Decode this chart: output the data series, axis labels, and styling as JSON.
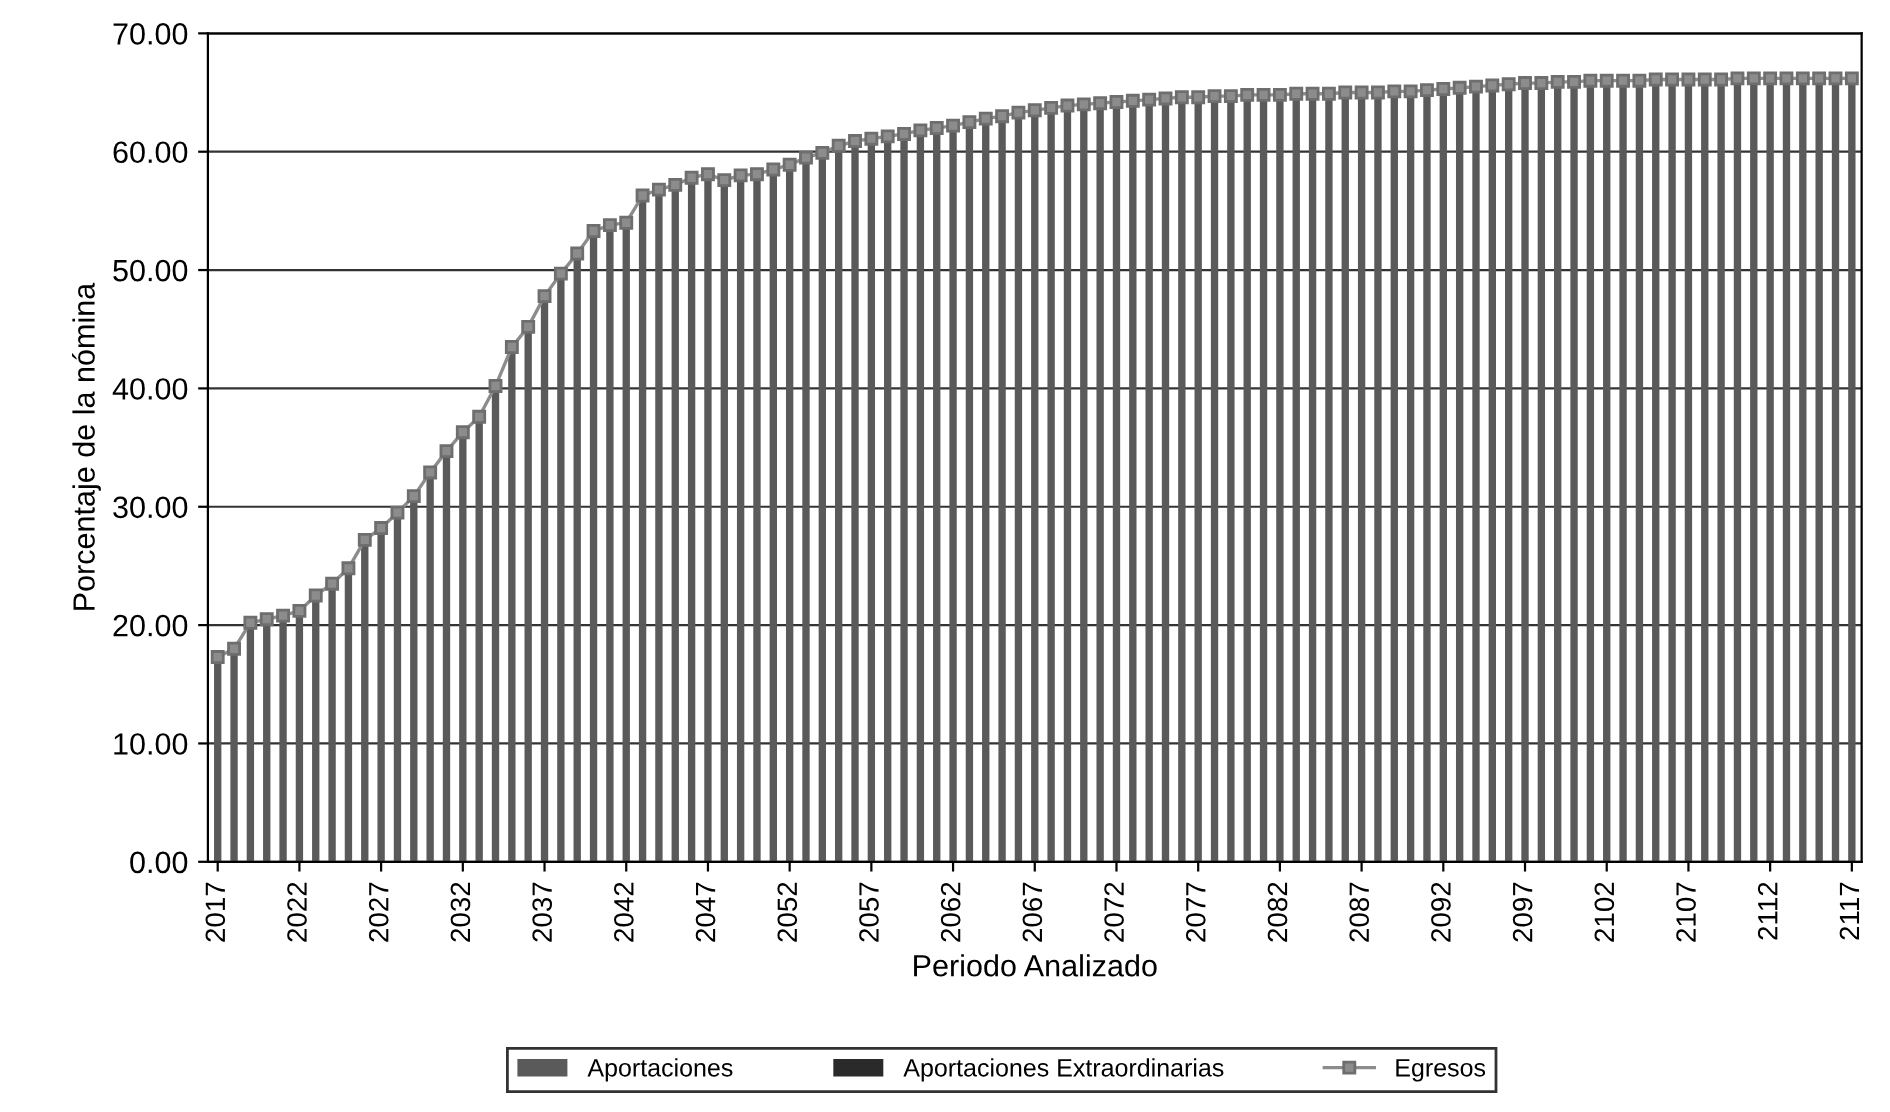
{
  "chart_data": {
    "type": "bar",
    "xlabel": "Periodo Analizado",
    "ylabel": "Porcentaje de la nómina",
    "categories": [
      "2017",
      null,
      null,
      null,
      null,
      "2022",
      null,
      null,
      null,
      null,
      "2027",
      null,
      null,
      null,
      null,
      "2032",
      null,
      null,
      null,
      null,
      "2037",
      null,
      null,
      null,
      null,
      "2042",
      null,
      null,
      null,
      null,
      "2047",
      null,
      null,
      null,
      null,
      "2052",
      null,
      null,
      null,
      null,
      "2057",
      null,
      null,
      null,
      null,
      "2062",
      null,
      null,
      null,
      null,
      "2067",
      null,
      null,
      null,
      null,
      "2072",
      null,
      null,
      null,
      null,
      "2077",
      null,
      null,
      null,
      null,
      "2082",
      null,
      null,
      null,
      null,
      "2087",
      null,
      null,
      null,
      null,
      "2092",
      null,
      null,
      null,
      null,
      "2097",
      null,
      null,
      null,
      null,
      "2102",
      null,
      null,
      null,
      null,
      "2107",
      null,
      null,
      null,
      null,
      "2112",
      null,
      null,
      null,
      null,
      "2117"
    ],
    "series": [
      {
        "name": "Aportaciones",
        "color": "#5a5a5a",
        "values": [
          17.3,
          18.0,
          20.2,
          20.5,
          20.8,
          21.2,
          22.5,
          23.5,
          24.8,
          27.2,
          28.2,
          29.5,
          30.9,
          32.9,
          34.7,
          36.3,
          37.6,
          40.2,
          43.5,
          45.2,
          47.8,
          49.7,
          51.4,
          53.3,
          53.8,
          54.0,
          56.3,
          56.8,
          57.2,
          57.8,
          58.1,
          57.6,
          58.0,
          58.1,
          58.5,
          58.9,
          59.5,
          59.9,
          60.5,
          60.9,
          61.1,
          61.3,
          61.5,
          61.8,
          62.0,
          62.2,
          62.5,
          62.8,
          63.0,
          63.3,
          63.5,
          63.7,
          63.9,
          64.0,
          64.1,
          64.2,
          64.3,
          64.4,
          64.5,
          64.6,
          64.6,
          64.7,
          64.7,
          64.8,
          64.8,
          64.8,
          64.9,
          64.9,
          64.9,
          65.0,
          65.0,
          65.0,
          65.1,
          65.1,
          65.2,
          65.3,
          65.4,
          65.5,
          65.6,
          65.7,
          65.8,
          65.8,
          65.9,
          65.9,
          66.0,
          66.0,
          66.0,
          66.0,
          66.1,
          66.1,
          66.1,
          66.1,
          66.1,
          66.2,
          66.2,
          66.2,
          66.2,
          66.2,
          66.2,
          66.2,
          66.2
        ]
      },
      {
        "name": "Aportaciones Extraordinarias",
        "color": "#2a2a2a",
        "values": [
          null,
          null,
          null,
          null,
          null,
          null,
          null,
          null,
          null,
          null,
          null,
          null,
          null,
          null,
          null,
          null,
          null,
          null,
          null,
          null,
          null,
          null,
          null,
          null,
          null,
          null,
          null,
          null,
          null,
          null,
          null,
          null,
          null,
          null,
          null,
          null,
          null,
          null,
          null,
          null,
          null,
          null,
          null,
          null,
          null,
          null,
          null,
          null,
          null,
          null,
          null,
          null,
          null,
          null,
          null,
          null,
          null,
          null,
          null,
          null,
          null,
          null,
          null,
          null,
          null,
          null,
          null,
          null,
          null,
          null,
          null,
          null,
          null,
          null,
          null,
          null,
          null,
          null,
          null,
          null,
          null,
          null,
          null,
          null,
          null,
          null,
          null,
          null,
          null,
          null,
          null,
          null,
          null,
          null,
          null,
          null,
          null,
          null,
          null,
          null,
          null
        ]
      },
      {
        "name": "Egresos",
        "type": "line",
        "color": "#8c8c8c",
        "marker": "square",
        "values": [
          17.3,
          18.0,
          20.2,
          20.5,
          20.8,
          21.2,
          22.5,
          23.5,
          24.8,
          27.2,
          28.2,
          29.5,
          30.9,
          32.9,
          34.7,
          36.3,
          37.6,
          40.2,
          43.5,
          45.2,
          47.8,
          49.7,
          51.4,
          53.3,
          53.8,
          54.0,
          56.3,
          56.8,
          57.2,
          57.8,
          58.1,
          57.6,
          58.0,
          58.1,
          58.5,
          58.9,
          59.5,
          59.9,
          60.5,
          60.9,
          61.1,
          61.3,
          61.5,
          61.8,
          62.0,
          62.2,
          62.5,
          62.8,
          63.0,
          63.3,
          63.5,
          63.7,
          63.9,
          64.0,
          64.1,
          64.2,
          64.3,
          64.4,
          64.5,
          64.6,
          64.6,
          64.7,
          64.7,
          64.8,
          64.8,
          64.8,
          64.9,
          64.9,
          64.9,
          65.0,
          65.0,
          65.0,
          65.1,
          65.1,
          65.2,
          65.3,
          65.4,
          65.5,
          65.6,
          65.7,
          65.8,
          65.8,
          65.9,
          65.9,
          66.0,
          66.0,
          66.0,
          66.0,
          66.1,
          66.1,
          66.1,
          66.1,
          66.1,
          66.2,
          66.2,
          66.2,
          66.2,
          66.2,
          66.2,
          66.2,
          66.2
        ]
      }
    ],
    "ylim": [
      0,
      70
    ],
    "yticks": [
      {
        "value": 0,
        "label": "0.00"
      },
      {
        "value": 10,
        "label": "10.00"
      },
      {
        "value": 20,
        "label": "20.00"
      },
      {
        "value": 30,
        "label": "30.00"
      },
      {
        "value": 40,
        "label": "40.00"
      },
      {
        "value": 50,
        "label": "50.00"
      },
      {
        "value": 60,
        "label": "60.00"
      },
      {
        "value": 70,
        "label": "70.00"
      }
    ],
    "grid": "y",
    "legend": "bottom"
  }
}
